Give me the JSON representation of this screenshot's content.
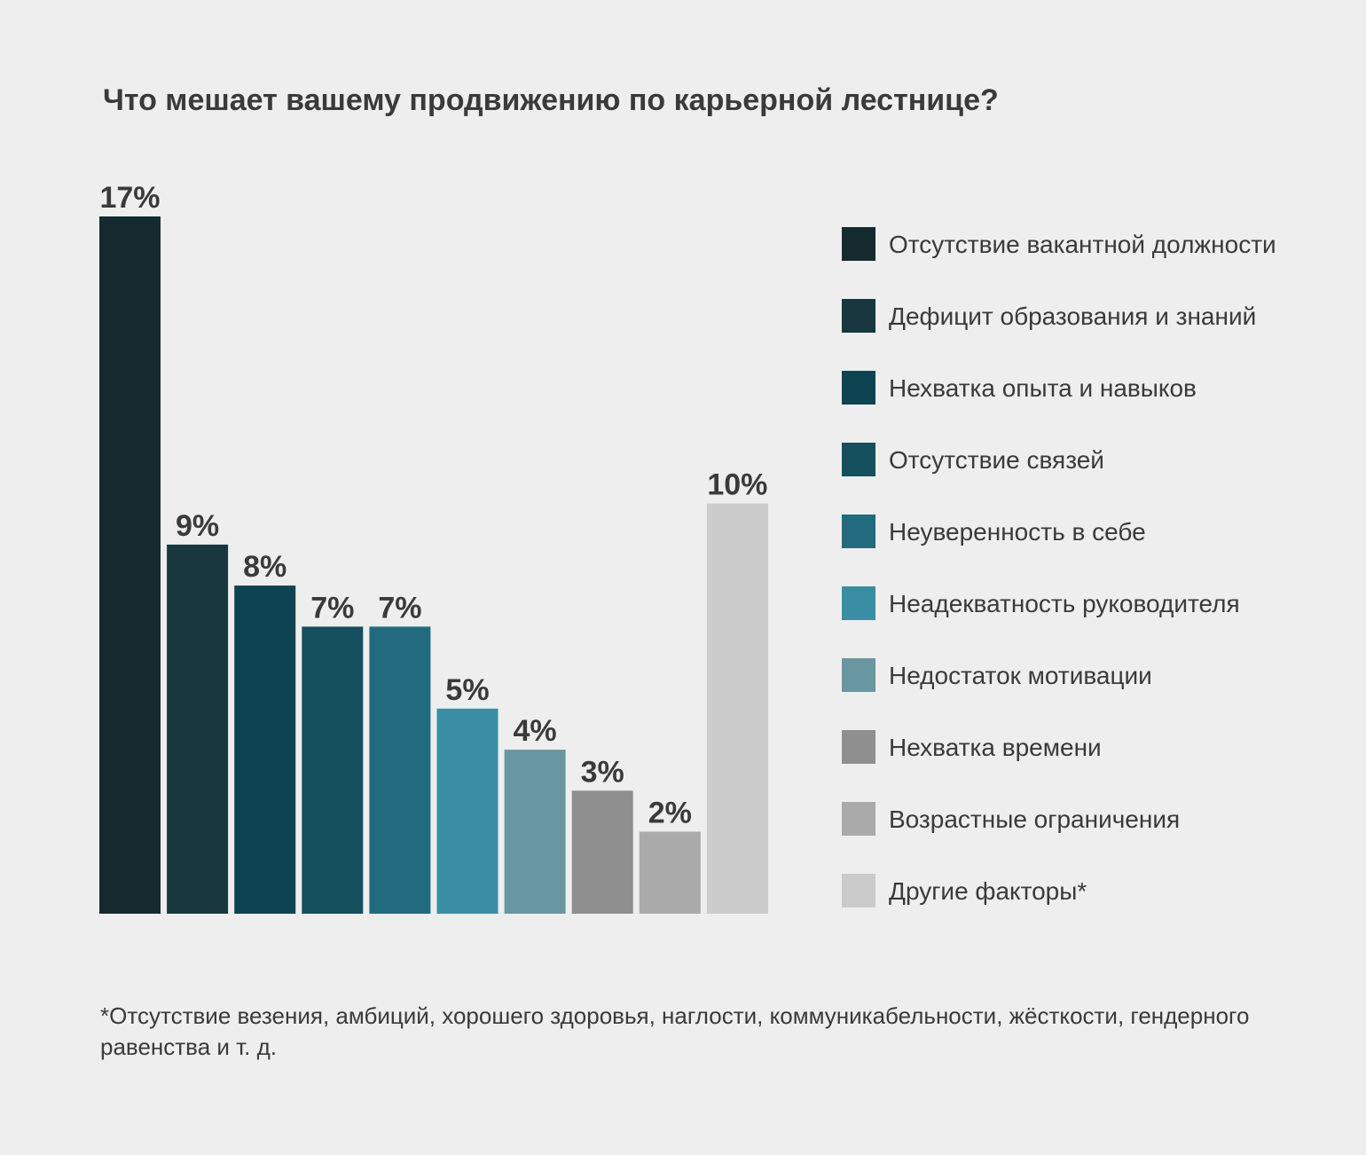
{
  "chart_data": {
    "type": "bar",
    "title": "Что мешает вашему продвижению по карьерной лестнице?",
    "categories": [
      "Отсутствие вакантной должности",
      "Дефицит образования и знаний",
      "Нехватка опыта и навыков",
      "Отсутствие связей",
      "Неуверенность в себе",
      "Неадекватность руководителя",
      "Недостаток мотивации",
      "Нехватка времени",
      "Возрастные ограничения",
      "Другие факторы*"
    ],
    "values": [
      17,
      9,
      8,
      7,
      7,
      5,
      4,
      3,
      2,
      10
    ],
    "value_labels": [
      "17%",
      "9%",
      "8%",
      "7%",
      "7%",
      "5%",
      "4%",
      "3%",
      "2%",
      "10%"
    ],
    "colors": [
      "#152a2e",
      "#18373e",
      "#0d4452",
      "#14505e",
      "#226b7e",
      "#398ea3",
      "#6896a1",
      "#8f8f8f",
      "#aaaaaa",
      "#cbcbcb"
    ],
    "ylim": [
      0,
      17
    ],
    "grid": false,
    "legend_position": "right",
    "footnote": "*Отсутствие везения, амбиций, хорошего здоровья, наглости, коммуникабельности, жёсткости, гендерного равенства и т. д."
  }
}
